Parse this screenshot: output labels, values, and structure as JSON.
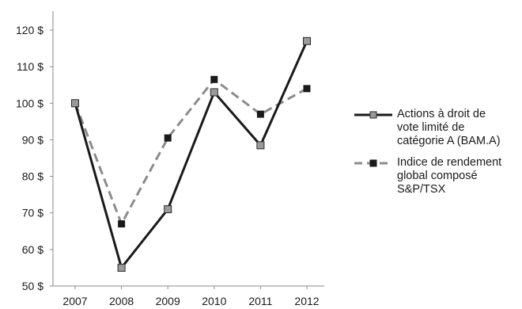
{
  "chart_data": {
    "type": "line",
    "categories": [
      "2007",
      "2008",
      "2009",
      "2010",
      "2011",
      "2012"
    ],
    "series": [
      {
        "name": "Actions à droit de vote limité de catégorie A (BAM.A)",
        "name_lines": [
          "Actions à droit de",
          "vote limité de",
          "catégorie A (BAM.A)"
        ],
        "values": [
          100,
          55,
          71,
          103,
          88.5,
          117
        ],
        "color": "#1a1a1a",
        "dashed": false
      },
      {
        "name": "Indice de rendement global composé S&P/TSX",
        "name_lines": [
          "Indice de rendement",
          "global composé",
          "S&P/TSX"
        ],
        "values": [
          100,
          67,
          90.5,
          106.5,
          97,
          104
        ],
        "color": "#8c8c8c",
        "dashed": true
      }
    ],
    "yticks": [
      "50 $",
      "60 $",
      "70 $",
      "80 $",
      "90 $",
      "100 $",
      "110 $",
      "120 $"
    ],
    "ylim": [
      50,
      120
    ],
    "grid": false,
    "legend_position": "right"
  }
}
